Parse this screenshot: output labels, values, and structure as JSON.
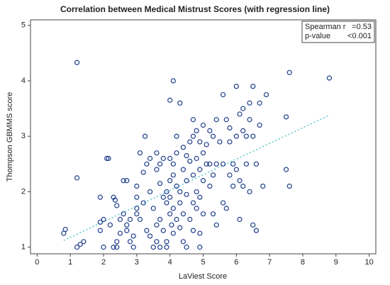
{
  "chart_data": {
    "type": "scatter",
    "title": "Correlation between Medical Mistrust Scores (with regression line)",
    "x_label": "LaViest Score",
    "y_label": "Thompson GBMMS score",
    "xlim": [
      -0.2,
      10.2
    ],
    "ylim": [
      0.88,
      5.1
    ],
    "xticks": [
      0,
      1,
      2,
      3,
      4,
      5,
      6,
      7,
      8,
      9,
      10
    ],
    "yticks": [
      1,
      2,
      3,
      4,
      5
    ],
    "color": "#1f3e8c",
    "stats": [
      [
        "Spearman r",
        "=0.53"
      ],
      [
        "p-value",
        "<0.001"
      ]
    ],
    "regression_line": {
      "x": [
        0.8,
        8.8
      ],
      "y": [
        1.12,
        3.38
      ],
      "color": "#5cc8c8"
    },
    "x": [
      0.8,
      0.85,
      1.2,
      1.2,
      1.2,
      1.3,
      1.4,
      1.9,
      1.9,
      1.9,
      2.0,
      2.0,
      2.1,
      2.15,
      2.2,
      2.3,
      2.35,
      2.3,
      2.4,
      2.4,
      2.4,
      2.5,
      2.5,
      2.6,
      2.6,
      2.7,
      2.7,
      2.7,
      2.8,
      2.8,
      2.9,
      2.9,
      3.0,
      3.0,
      3.0,
      3.0,
      3.1,
      3.1,
      3.2,
      3.2,
      3.25,
      3.3,
      3.3,
      3.4,
      3.4,
      3.4,
      3.5,
      3.5,
      3.6,
      3.6,
      3.6,
      3.6,
      3.7,
      3.7,
      3.7,
      3.7,
      3.8,
      3.8,
      3.8,
      3.9,
      3.9,
      3.9,
      3.9,
      4.0,
      4.0,
      4.0,
      4.0,
      4.0,
      4.05,
      4.1,
      4.1,
      4.1,
      4.1,
      4.1,
      4.2,
      4.2,
      4.2,
      4.2,
      4.3,
      4.3,
      4.3,
      4.3,
      4.4,
      4.4,
      4.4,
      4.4,
      4.5,
      4.5,
      4.5,
      4.5,
      4.6,
      4.6,
      4.6,
      4.7,
      4.7,
      4.7,
      4.7,
      4.7,
      4.8,
      4.8,
      4.8,
      4.8,
      4.9,
      4.9,
      4.9,
      4.9,
      4.9,
      5.0,
      5.0,
      5.0,
      5.0,
      5.1,
      5.1,
      5.2,
      5.2,
      5.2,
      5.3,
      5.3,
      5.3,
      5.4,
      5.4,
      5.4,
      5.5,
      5.6,
      5.6,
      5.6,
      5.7,
      5.7,
      5.8,
      5.8,
      5.8,
      5.9,
      5.9,
      6.0,
      6.0,
      6.0,
      6.1,
      6.1,
      6.1,
      6.2,
      6.2,
      6.2,
      6.3,
      6.3,
      6.4,
      6.4,
      6.4,
      6.5,
      6.5,
      6.5,
      6.6,
      6.6,
      6.7,
      6.7,
      6.8,
      6.9,
      7.5,
      7.5,
      7.6,
      7.6,
      8.8
    ],
    "y": [
      1.25,
      1.32,
      4.33,
      2.25,
      1.0,
      1.05,
      1.1,
      1.9,
      1.3,
      1.45,
      1.5,
      1.0,
      2.6,
      2.6,
      1.4,
      1.9,
      1.85,
      1.0,
      1.0,
      1.1,
      1.75,
      1.5,
      1.25,
      1.6,
      2.2,
      2.2,
      1.4,
      1.3,
      1.5,
      1.1,
      1.2,
      1.0,
      1.9,
      2.1,
      1.6,
      1.7,
      2.7,
      1.5,
      1.8,
      2.35,
      3.0,
      2.5,
      1.3,
      2.6,
      2.0,
      1.2,
      1.7,
      1.0,
      2.7,
      2.4,
      1.4,
      1.1,
      2.5,
      2.15,
      1.5,
      1.0,
      2.6,
      1.9,
      1.3,
      2.0,
      1.8,
      1.1,
      1.0,
      3.65,
      2.6,
      2.2,
      1.9,
      1.6,
      1.4,
      4.0,
      2.5,
      2.3,
      1.7,
      1.25,
      3.0,
      2.7,
      2.1,
      1.5,
      3.6,
      2.0,
      1.8,
      1.35,
      2.8,
      2.4,
      1.6,
      1.1,
      2.65,
      2.2,
      1.95,
      1.0,
      2.9,
      2.55,
      1.5,
      3.3,
      3.0,
      2.3,
      1.8,
      1.3,
      3.1,
      2.6,
      2.0,
      1.7,
      2.9,
      2.4,
      1.9,
      1.25,
      1.0,
      3.2,
      2.7,
      2.2,
      1.6,
      2.85,
      2.5,
      3.1,
      2.5,
      2.1,
      3.0,
      2.3,
      1.6,
      3.3,
      2.5,
      1.4,
      2.9,
      3.75,
      2.5,
      1.8,
      3.3,
      1.7,
      3.15,
      2.9,
      2.3,
      2.5,
      2.1,
      3.9,
      3.0,
      2.4,
      3.4,
      2.2,
      1.5,
      3.5,
      3.1,
      2.1,
      3.0,
      2.5,
      3.6,
      3.3,
      2.0,
      3.9,
      3.0,
      1.4,
      2.5,
      1.3,
      3.6,
      3.2,
      2.1,
      3.75,
      3.35,
      2.4,
      4.15,
      2.1,
      4.05
    ]
  }
}
